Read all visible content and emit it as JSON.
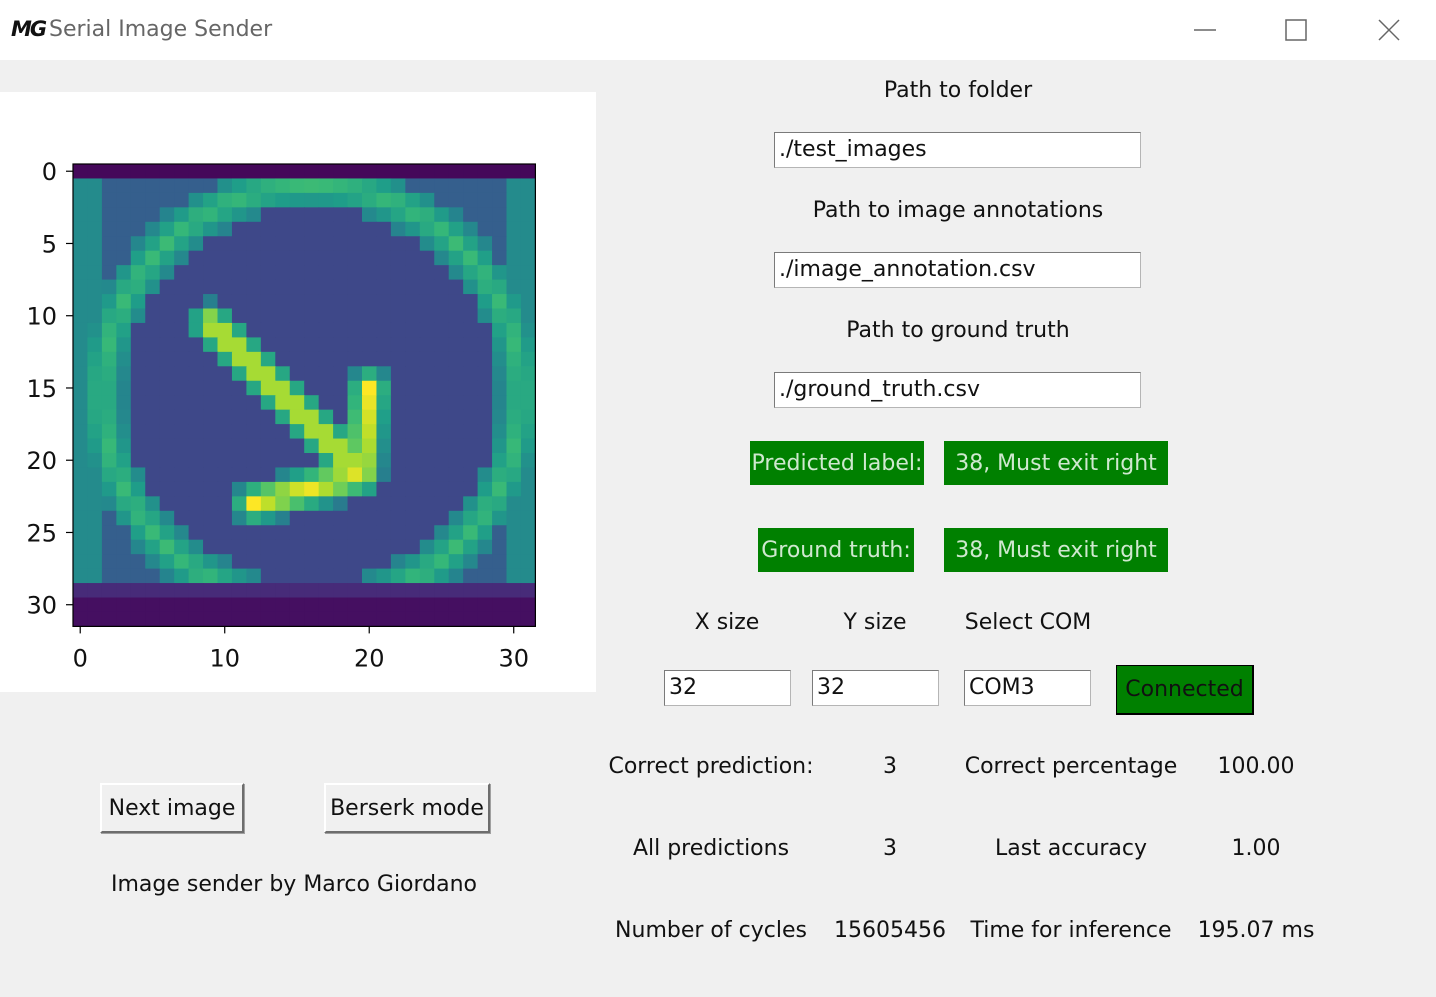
{
  "window": {
    "logo_text": "MG",
    "title": "Serial Image Sender",
    "controls": [
      "minimize-icon",
      "maximize-icon",
      "close-icon"
    ]
  },
  "plot": {
    "y_ticks": [
      "0",
      "5",
      "10",
      "15",
      "20",
      "25",
      "30"
    ],
    "x_ticks": [
      "0",
      "10",
      "20",
      "30"
    ]
  },
  "chart_data": {
    "type": "heatmap",
    "colormap": "viridis",
    "x_range": [
      0,
      31
    ],
    "y_range": [
      0,
      31
    ],
    "x_ticks": [
      0,
      10,
      20,
      30
    ],
    "y_ticks": [
      0,
      5,
      10,
      15,
      20,
      25,
      30
    ]
  },
  "folder": {
    "label": "Path to folder",
    "value": "./test_images"
  },
  "annotations": {
    "label": "Path to image annotations",
    "value": "./image_annotation.csv"
  },
  "ground_truth_path": {
    "label": "Path to ground truth",
    "value": "./ground_truth.csv"
  },
  "prediction": {
    "label": "Predicted label:",
    "value": "38,  Must exit right"
  },
  "truth": {
    "label": "Ground truth:",
    "value": "38,  Must exit right"
  },
  "settings": {
    "x_label": "X size",
    "y_label": "Y size",
    "com_label": "Select COM",
    "x_value": "32",
    "y_value": "32",
    "com_value": "COM3",
    "connect_label": "Connected"
  },
  "stats": {
    "correct_label": "Correct prediction:",
    "correct_value": "3",
    "percentage_label": "Correct percentage",
    "percentage_value": "100.00",
    "all_label": "All predictions",
    "all_value": "3",
    "accuracy_label": "Last accuracy",
    "accuracy_value": "1.00",
    "cycles_label": "Number of cycles",
    "cycles_value": "15605456",
    "time_label": "Time for inference",
    "time_value": "195.07 ms"
  },
  "actions": {
    "next_label": "Next image",
    "berserk_label": "Berserk mode"
  },
  "credit": "Image sender by Marco Giordano"
}
